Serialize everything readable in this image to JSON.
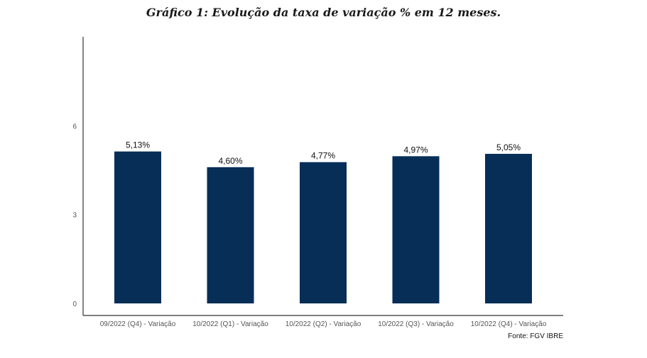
{
  "chart_data": {
    "type": "bar",
    "title": "Gráfico 1: Evolução da taxa de variação % em 12 meses.",
    "categories": [
      "09/2022 (Q4) - Variação",
      "10/2022 (Q1) - Variação",
      "10/2022 (Q2) - Variação",
      "10/2022 (Q3) - Variação",
      "10/2022 (Q4) - Variação"
    ],
    "values": [
      5.13,
      4.6,
      4.77,
      4.97,
      5.05
    ],
    "data_labels": [
      "5,13%",
      "4,60%",
      "4,77%",
      "4,97%",
      "5,05%"
    ],
    "yticks": [
      0,
      3,
      6
    ],
    "ylim": [
      0,
      9
    ],
    "xlabel": "",
    "ylabel": "",
    "grid": false,
    "legend": "none",
    "bar_color": "#062e57",
    "source": "Fonte: FGV IBRE"
  }
}
